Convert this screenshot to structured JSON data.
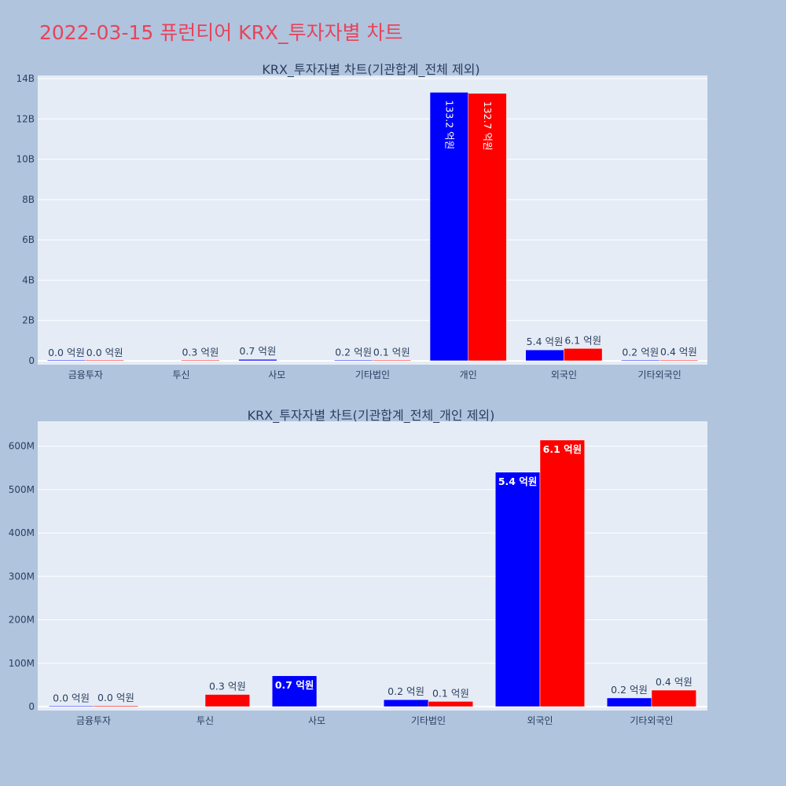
{
  "page": {
    "title": "2022-03-15 퓨런티어 KRX_투자자별 차트"
  },
  "colors": {
    "series_a": "#0000ff",
    "series_b": "#ff0000",
    "plot_bg": "#e5ecf6",
    "page_bg": "#b0c4de",
    "title": "#e8435a"
  },
  "chart_data": [
    {
      "type": "bar",
      "title": "KRX_투자자별 차트(기관합계_전체 제외)",
      "categories": [
        "금융투자",
        "투신",
        "사모",
        "기타법인",
        "개인",
        "외국인",
        "기타외국인"
      ],
      "series": [
        {
          "values": [
            4000000,
            0,
            70000000,
            20000000,
            13320000000,
            540000000,
            20000000
          ],
          "labels": [
            "0.0 억원",
            "",
            "0.7 억원",
            "0.2 억원",
            "133.2 억원",
            "5.4 억원",
            "0.2 억원"
          ]
        },
        {
          "values": [
            3000000,
            28000000,
            0,
            12000000,
            13270000000,
            612000000,
            38000000
          ],
          "labels": [
            "0.0 억원",
            "0.3 억원",
            "",
            "0.1 억원",
            "132.7 억원",
            "6.1 억원",
            "0.4 억원"
          ]
        }
      ],
      "ylim": [
        0,
        14000000000
      ],
      "yticks": [
        0,
        2000000000,
        4000000000,
        6000000000,
        8000000000,
        10000000000,
        12000000000,
        14000000000
      ],
      "ytick_labels": [
        "0",
        "2B",
        "4B",
        "6B",
        "8B",
        "10B",
        "12B",
        "14B"
      ],
      "grid": true
    },
    {
      "type": "bar",
      "title": "KRX_투자자별 차트(기관합계_전체_개인 제외)",
      "categories": [
        "금융투자",
        "투신",
        "사모",
        "기타법인",
        "외국인",
        "기타외국인"
      ],
      "series": [
        {
          "values": [
            1000000,
            0,
            71000000,
            16000000,
            540000000,
            20000000
          ],
          "labels": [
            "0.0 억원",
            "",
            "0.7 억원",
            "0.2 억원",
            "5.4 억원",
            "0.2 억원"
          ]
        },
        {
          "values": [
            2000000,
            28000000,
            0,
            12000000,
            614000000,
            38000000
          ],
          "labels": [
            "0.0 억원",
            "0.3 억원",
            "",
            "0.1 억원",
            "6.1 억원",
            "0.4 억원"
          ]
        }
      ],
      "ylim": [
        0,
        650000000
      ],
      "yticks": [
        0,
        100000000,
        200000000,
        300000000,
        400000000,
        500000000,
        600000000
      ],
      "ytick_labels": [
        "0",
        "100M",
        "200M",
        "300M",
        "400M",
        "500M",
        "600M"
      ],
      "grid": true
    }
  ]
}
